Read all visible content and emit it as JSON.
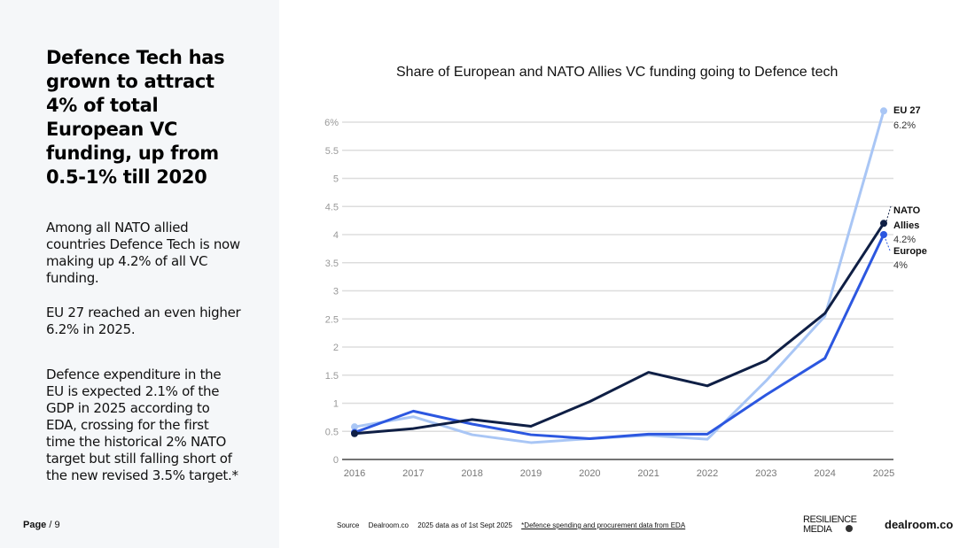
{
  "left_panel": {
    "headline": "Defence Tech has grown to attract 4% of total European VC funding, up from 0.5-1% till 2020",
    "paragraphs": [
      "Among all NATO allied countries Defence Tech is now making up 4.2% of all VC funding.",
      "EU 27 reached an even higher 6.2% in 2025.",
      "Defence expenditure in the EU is expected 2.1% of the GDP in 2025 according to EDA, crossing for the first time the historical 2% NATO target but still falling short of the new revised 3.5% target.*"
    ],
    "page_label": "Page",
    "page_number": "/ 9"
  },
  "footer": {
    "source_label": "Source",
    "source": "Dealroom.co",
    "data_note": "2025 data as of 1st Sept 2025",
    "footnote_link": "*Defence spending and procurement data from EDA",
    "logo_resilience_line1": "RESILIENCE",
    "logo_resilience_line2": "MEDIA",
    "logo_dealroom": "dealroom.co"
  },
  "chart_data": {
    "type": "line",
    "title": "Share of European and NATO Allies VC funding going to Defence tech",
    "xlabel": "",
    "ylabel": "",
    "x": [
      "2016",
      "2017",
      "2018",
      "2019",
      "2020",
      "2021",
      "2022",
      "2023",
      "2024",
      "2025"
    ],
    "ylim": [
      0,
      6
    ],
    "yticks": [
      "0",
      "0.5",
      "1",
      "1.5",
      "2",
      "2.5",
      "3",
      "3.5",
      "4",
      "4.5",
      "5",
      "5.5",
      "6%"
    ],
    "grid": true,
    "series": [
      {
        "name": "EU 27",
        "end_label": "6.2%",
        "color": "#a9c6f5",
        "values": [
          0.58,
          0.76,
          0.44,
          0.3,
          0.37,
          0.43,
          0.36,
          1.4,
          2.55,
          6.2
        ]
      },
      {
        "name": "Europe",
        "end_label": "4%",
        "color": "#2c57e0",
        "values": [
          0.48,
          0.86,
          0.63,
          0.44,
          0.37,
          0.45,
          0.45,
          1.15,
          1.8,
          4.0
        ]
      },
      {
        "name": "NATO Allies",
        "name_line1": "NATO",
        "name_line2": "Allies",
        "end_label": "4.2%",
        "color": "#0f1f45",
        "values": [
          0.46,
          0.55,
          0.71,
          0.59,
          1.03,
          1.55,
          1.31,
          1.76,
          2.6,
          4.2
        ]
      }
    ]
  }
}
